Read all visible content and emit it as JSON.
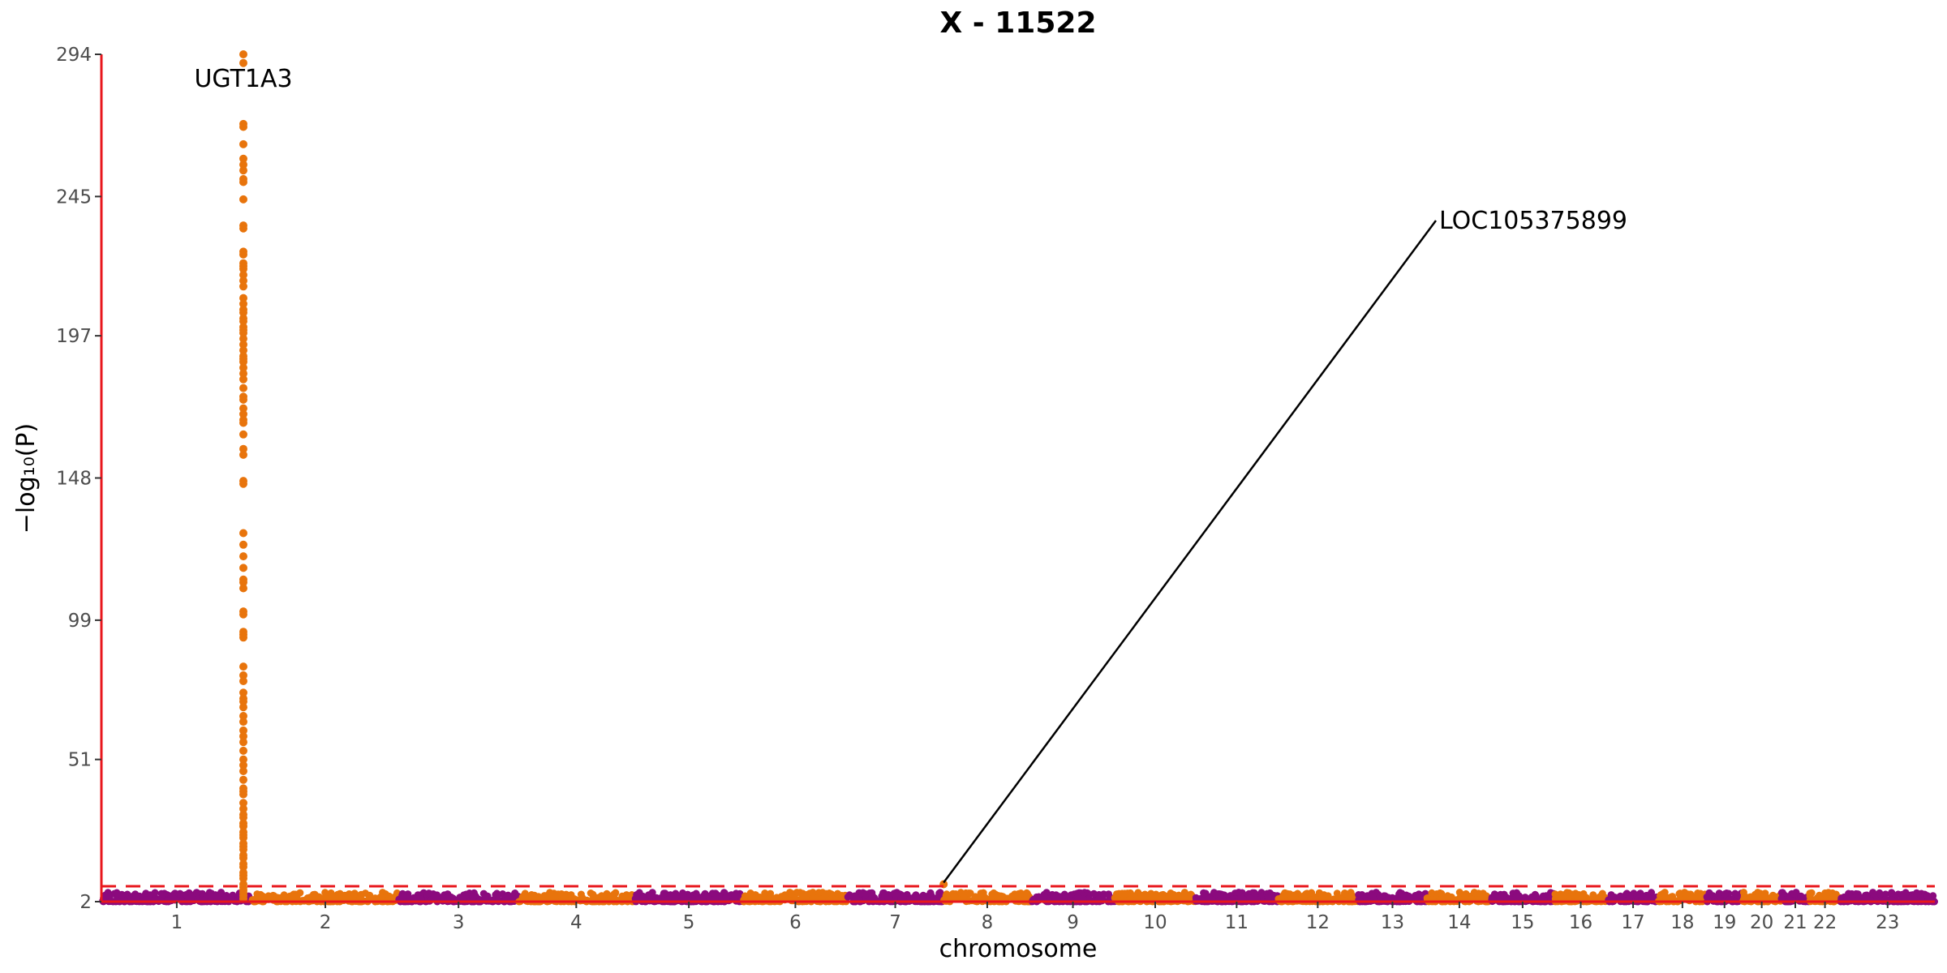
{
  "chart_data": {
    "type": "scatter",
    "title": "X - 11522",
    "xlabel": "chromosome",
    "ylabel": "−log₁₀(P)",
    "ylim": [
      2,
      294
    ],
    "y_ticks": [
      2,
      51,
      99,
      148,
      197,
      245,
      294
    ],
    "chromosomes": [
      {
        "label": "1",
        "start": 0,
        "end": 249
      },
      {
        "label": "2",
        "start": 249,
        "end": 491
      },
      {
        "label": "3",
        "start": 491,
        "end": 689
      },
      {
        "label": "4",
        "start": 689,
        "end": 880
      },
      {
        "label": "5",
        "start": 880,
        "end": 1061
      },
      {
        "label": "6",
        "start": 1061,
        "end": 1232
      },
      {
        "label": "7",
        "start": 1232,
        "end": 1391
      },
      {
        "label": "8",
        "start": 1391,
        "end": 1536
      },
      {
        "label": "9",
        "start": 1536,
        "end": 1674
      },
      {
        "label": "10",
        "start": 1674,
        "end": 1808
      },
      {
        "label": "11",
        "start": 1808,
        "end": 1943
      },
      {
        "label": "12",
        "start": 1943,
        "end": 2076
      },
      {
        "label": "13",
        "start": 2076,
        "end": 2190
      },
      {
        "label": "14",
        "start": 2190,
        "end": 2297
      },
      {
        "label": "15",
        "start": 2297,
        "end": 2399
      },
      {
        "label": "16",
        "start": 2399,
        "end": 2489
      },
      {
        "label": "17",
        "start": 2489,
        "end": 2572
      },
      {
        "label": "18",
        "start": 2572,
        "end": 2652
      },
      {
        "label": "19",
        "start": 2652,
        "end": 2711
      },
      {
        "label": "20",
        "start": 2711,
        "end": 2775
      },
      {
        "label": "21",
        "start": 2775,
        "end": 2822
      },
      {
        "label": "22",
        "start": 2822,
        "end": 2873
      },
      {
        "label": "23",
        "start": 2873,
        "end": 3029
      }
    ],
    "colors": {
      "odd_chromosome": "#8b0a7e",
      "even_chromosome": "#e8740c",
      "threshold_line": "#e8171c",
      "y_axis_line": "#e8171c",
      "label_line": "#000000"
    },
    "significance_threshold": 7.3,
    "series": [
      {
        "chromosome": "2",
        "position": 234.6,
        "y_values": [
          294,
          291,
          270,
          269,
          263,
          258,
          256,
          254,
          251,
          250,
          244,
          235,
          234,
          226,
          225,
          222,
          221,
          220,
          218,
          216,
          214,
          210,
          208,
          206,
          205,
          203,
          202,
          200,
          199,
          198,
          196,
          194,
          192,
          190,
          189,
          188,
          186,
          184,
          182,
          179,
          176,
          175,
          172,
          170,
          168,
          167,
          163,
          158,
          156,
          147,
          146,
          129,
          125,
          121,
          117,
          113,
          112,
          110,
          102,
          101,
          95,
          94,
          93,
          83,
          80,
          78,
          74,
          72,
          71,
          69,
          66,
          64,
          61,
          59,
          57,
          54,
          51,
          49,
          47,
          44,
          41,
          40,
          39,
          36,
          34,
          32,
          31,
          29,
          28,
          26,
          25,
          24,
          22,
          21,
          20,
          18,
          17,
          15,
          14,
          12,
          11,
          10,
          8,
          7,
          6,
          5,
          4,
          3
        ]
      },
      {
        "chromosome": "8",
        "position": 1391.4,
        "y_values": [
          8
        ]
      }
    ],
    "annotations": [
      {
        "text": "UGT1A3",
        "chromosome": "2",
        "y": 294
      },
      {
        "text": "LOC105375899",
        "chromosome": "8",
        "y": 8
      }
    ]
  }
}
